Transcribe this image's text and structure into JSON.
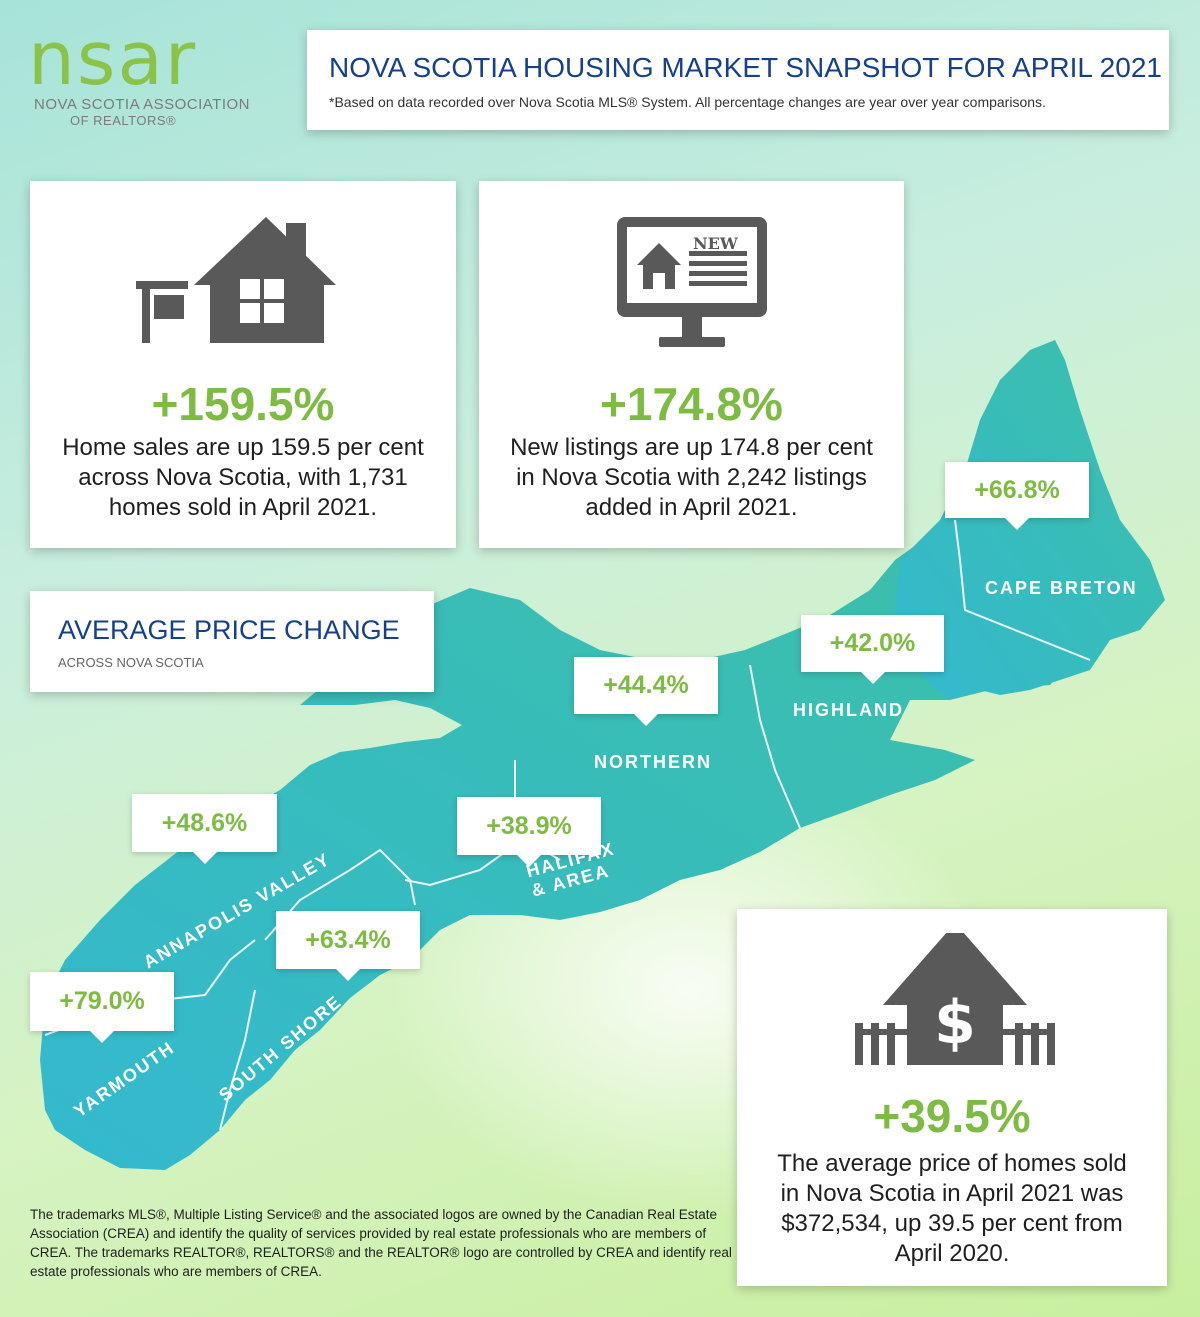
{
  "logo": {
    "mark": "nsar",
    "line1": "NOVA SCOTIA ASSOCIATION",
    "line2": "OF REALTORS®"
  },
  "header": {
    "title": "NOVA SCOTIA HOUSING MARKET SNAPSHOT FOR APRIL 2021",
    "subtitle": "*Based on data recorded over Nova Scotia MLS® System. All percentage changes are year over year comparisons."
  },
  "sales_card": {
    "icon": "house-for-sale-icon",
    "percent": "+159.5%",
    "text": "Home sales are up 159.5 per cent across Nova Scotia, with 1,731 homes sold in April 2021."
  },
  "listings_card": {
    "icon": "new-listing-monitor-icon",
    "badge": "NEW",
    "percent": "+174.8%",
    "text": "New listings are up 174.8 per cent in Nova Scotia with 2,242 listings added in April 2021."
  },
  "avg_price_box": {
    "title": "AVERAGE PRICE CHANGE",
    "subtitle": "ACROSS NOVA SCOTIA"
  },
  "regions": [
    {
      "name": "CAPE BRETON",
      "change": "+66.8%"
    },
    {
      "name": "HIGHLAND",
      "change": "+42.0%"
    },
    {
      "name": "NORTHERN",
      "change": "+44.4%"
    },
    {
      "name": "HALIFAX & AREA",
      "change": "+38.9%"
    },
    {
      "name": "ANNAPOLIS VALLEY",
      "change": "+48.6%"
    },
    {
      "name": "SOUTH SHORE",
      "change": "+63.4%"
    },
    {
      "name": "YARMOUTH",
      "change": "+79.0%"
    }
  ],
  "price_card": {
    "icon": "house-dollar-icon",
    "percent": "+39.5%",
    "text": "The average price of homes sold in Nova Scotia in April 2021 was $372,534, up 39.5 per cent from April 2020."
  },
  "footer": "The trademarks MLS®, Multiple Listing Service® and the associated logos are owned by the Canadian Real Estate Association (CREA) and identify the quality of services provided by real estate professionals who are members of CREA. The trademarks REALTOR®, REALTORS® and the REALTOR® logo are controlled by CREA and identify real estate professionals who are members of CREA.",
  "colors": {
    "map": "#35b9b3",
    "accent_green": "#7dbb42",
    "title_blue": "#17408b",
    "icon_gray": "#595959"
  }
}
